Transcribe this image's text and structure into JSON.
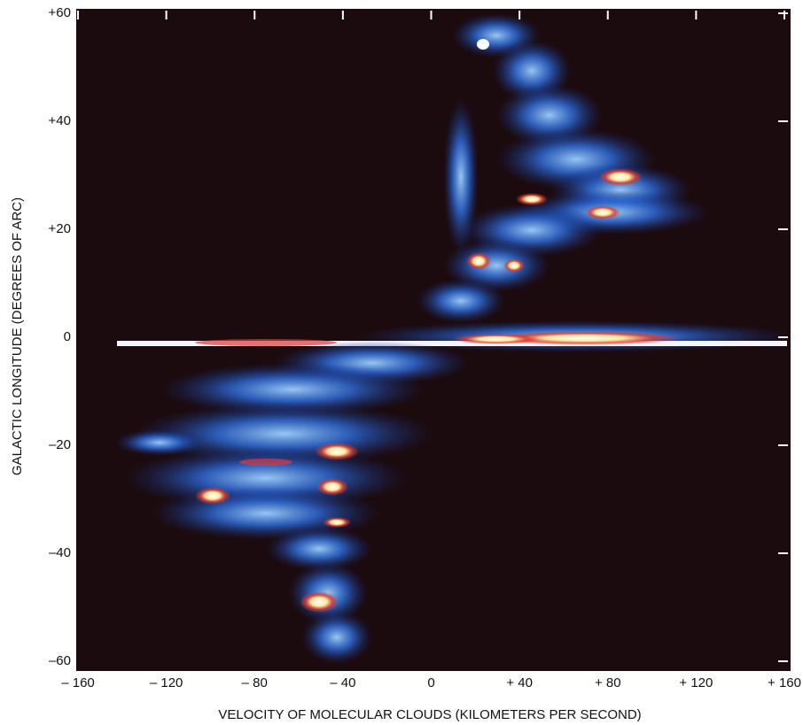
{
  "chart_data": {
    "type": "image",
    "xlabel": "VELOCITY OF MOLECULAR CLOUDS (KILOMETERS PER SECOND)",
    "ylabel": "GALACTIC LONGITUDE  (DEGREES OF ARC)",
    "xlim": [
      -160,
      160
    ],
    "xticks": [
      {
        "value": -160,
        "label": "– 160"
      },
      {
        "value": -120,
        "label": "– 120"
      },
      {
        "value": -80,
        "label": "– 80"
      },
      {
        "value": -40,
        "label": "– 40"
      },
      0,
      {
        "value": 40,
        "label": "+ 40"
      },
      {
        "value": 80,
        "label": "+ 80"
      },
      {
        "value": 120,
        "label": "+ 120"
      },
      {
        "value": 160,
        "label": "+ 160"
      }
    ],
    "ylim": [
      -60,
      60
    ],
    "yticks": [
      {
        "value": 60,
        "label": "+60"
      },
      {
        "value": 40,
        "label": "+40"
      },
      {
        "value": 20,
        "label": "+20"
      },
      0,
      {
        "value": -20,
        "label": "–20"
      },
      {
        "value": -40,
        "label": "–40"
      },
      {
        "value": -60,
        "label": "–60"
      }
    ]
  }
}
